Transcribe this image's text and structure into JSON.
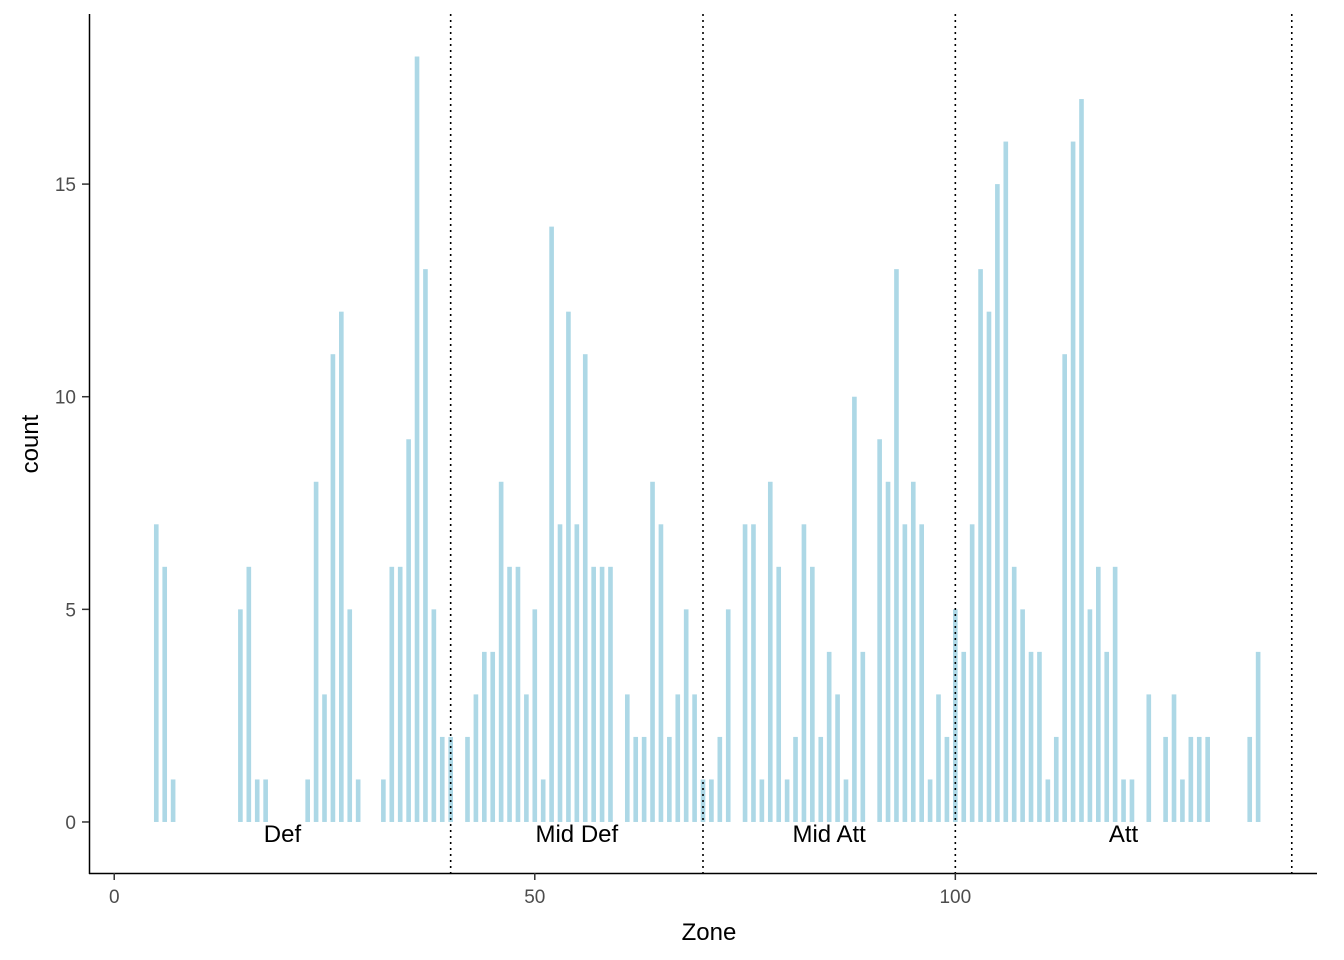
{
  "chart_data": {
    "type": "bar",
    "xlabel": "Zone",
    "ylabel": "count",
    "xlim": [
      -3,
      143
    ],
    "ylim": [
      -1.2,
      19
    ],
    "x_ticks": [
      0,
      50,
      100
    ],
    "y_ticks": [
      0,
      5,
      10,
      15
    ],
    "grid": false,
    "bar_color": "#add8e6",
    "points": [
      [
        5,
        7
      ],
      [
        6,
        6
      ],
      [
        7,
        1
      ],
      [
        15,
        5
      ],
      [
        16,
        6
      ],
      [
        17,
        1
      ],
      [
        18,
        1
      ],
      [
        23,
        1
      ],
      [
        24,
        8
      ],
      [
        25,
        3
      ],
      [
        26,
        11
      ],
      [
        27,
        12
      ],
      [
        28,
        5
      ],
      [
        29,
        1
      ],
      [
        32,
        1
      ],
      [
        33,
        6
      ],
      [
        34,
        6
      ],
      [
        35,
        9
      ],
      [
        36,
        18
      ],
      [
        37,
        13
      ],
      [
        38,
        5
      ],
      [
        39,
        2
      ],
      [
        40,
        2
      ],
      [
        42,
        2
      ],
      [
        43,
        3
      ],
      [
        44,
        4
      ],
      [
        45,
        4
      ],
      [
        46,
        8
      ],
      [
        47,
        6
      ],
      [
        48,
        6
      ],
      [
        49,
        3
      ],
      [
        50,
        5
      ],
      [
        51,
        1
      ],
      [
        52,
        14
      ],
      [
        53,
        7
      ],
      [
        54,
        12
      ],
      [
        55,
        7
      ],
      [
        56,
        11
      ],
      [
        57,
        6
      ],
      [
        58,
        6
      ],
      [
        59,
        6
      ],
      [
        61,
        3
      ],
      [
        62,
        2
      ],
      [
        63,
        2
      ],
      [
        64,
        8
      ],
      [
        65,
        7
      ],
      [
        66,
        2
      ],
      [
        67,
        3
      ],
      [
        68,
        5
      ],
      [
        69,
        3
      ],
      [
        70,
        1
      ],
      [
        71,
        1
      ],
      [
        72,
        2
      ],
      [
        73,
        5
      ],
      [
        75,
        7
      ],
      [
        76,
        7
      ],
      [
        77,
        1
      ],
      [
        78,
        8
      ],
      [
        79,
        6
      ],
      [
        80,
        1
      ],
      [
        81,
        2
      ],
      [
        82,
        7
      ],
      [
        83,
        6
      ],
      [
        84,
        2
      ],
      [
        85,
        4
      ],
      [
        86,
        3
      ],
      [
        87,
        1
      ],
      [
        88,
        10
      ],
      [
        89,
        4
      ],
      [
        91,
        9
      ],
      [
        92,
        8
      ],
      [
        93,
        13
      ],
      [
        94,
        7
      ],
      [
        95,
        8
      ],
      [
        96,
        7
      ],
      [
        97,
        1
      ],
      [
        98,
        3
      ],
      [
        99,
        2
      ],
      [
        100,
        5
      ],
      [
        101,
        4
      ],
      [
        102,
        7
      ],
      [
        103,
        13
      ],
      [
        104,
        12
      ],
      [
        105,
        15
      ],
      [
        106,
        16
      ],
      [
        107,
        6
      ],
      [
        108,
        5
      ],
      [
        109,
        4
      ],
      [
        110,
        4
      ],
      [
        111,
        1
      ],
      [
        112,
        2
      ],
      [
        113,
        11
      ],
      [
        114,
        16
      ],
      [
        115,
        17
      ],
      [
        116,
        5
      ],
      [
        117,
        6
      ],
      [
        118,
        4
      ],
      [
        119,
        6
      ],
      [
        120,
        1
      ],
      [
        121,
        1
      ],
      [
        123,
        3
      ],
      [
        125,
        2
      ],
      [
        126,
        3
      ],
      [
        127,
        1
      ],
      [
        128,
        2
      ],
      [
        129,
        2
      ],
      [
        130,
        2
      ],
      [
        135,
        2
      ],
      [
        136,
        4
      ]
    ],
    "boundaries": [
      40,
      70,
      100,
      140
    ],
    "zones": [
      {
        "label": "Def",
        "x": 20
      },
      {
        "label": "Mid Def",
        "x": 55
      },
      {
        "label": "Mid Att",
        "x": 85
      },
      {
        "label": "Att",
        "x": 120
      }
    ]
  }
}
